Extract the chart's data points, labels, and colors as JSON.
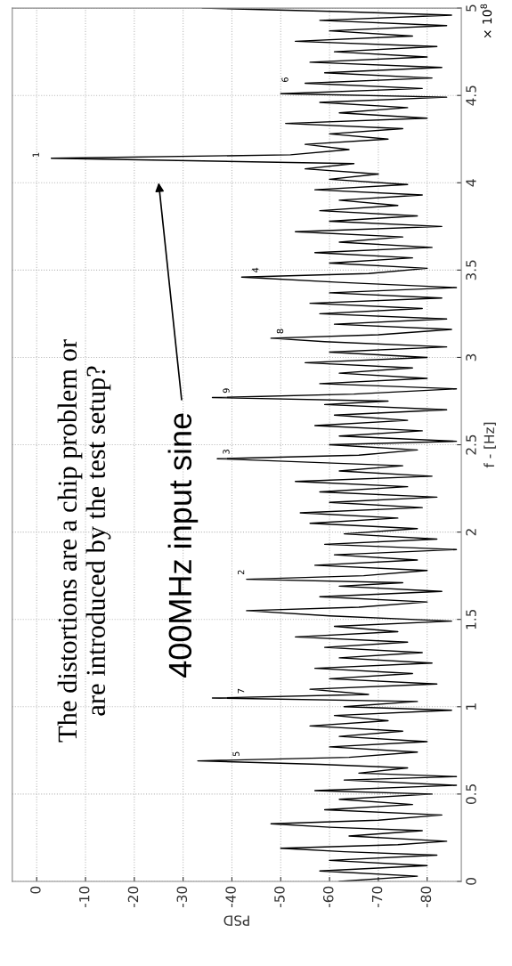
{
  "chart_data": {
    "type": "line",
    "xlabel": "PSD",
    "ylabel": "f - [Hz]",
    "series": [
      {
        "color": "#000000",
        "x": [
          -62,
          -78,
          -58,
          -80,
          -60,
          -82,
          -63,
          -50,
          -74,
          -84,
          -64,
          -79,
          -60,
          -48,
          -70,
          -83,
          -59,
          -77,
          -62,
          -81,
          -57,
          -86,
          -63,
          -86,
          -66,
          -76,
          -58,
          -33,
          -64,
          -78,
          -60,
          -80,
          -62,
          -75,
          -56,
          -72,
          -61,
          -85,
          -63,
          -78,
          -36,
          -68,
          -56,
          -82,
          -60,
          -77,
          -57,
          -81,
          -62,
          -79,
          -59,
          -76,
          -53,
          -74,
          -61,
          -85,
          -60,
          -43,
          -66,
          -80,
          -58,
          -83,
          -62,
          -75,
          -43,
          -67,
          -80,
          -57,
          -78,
          -61,
          -86,
          -59,
          -82,
          -63,
          -78,
          -56,
          -74,
          -54,
          -79,
          -60,
          -82,
          -58,
          -76,
          -53,
          -81,
          -62,
          -75,
          -37,
          -66,
          -78,
          -60,
          -86,
          -62,
          -79,
          -57,
          -76,
          -61,
          -84,
          -59,
          -72,
          -36,
          -65,
          -86,
          -58,
          -80,
          -62,
          -77,
          -55,
          -80,
          -60,
          -84,
          -59,
          -48,
          -70,
          -85,
          -61,
          -84,
          -58,
          -79,
          -56,
          -83,
          -60,
          -86,
          -62,
          -42,
          -68,
          -80,
          -60,
          -77,
          -57,
          -81,
          -62,
          -75,
          -53,
          -83,
          -60,
          -78,
          -58,
          -74,
          -62,
          -79,
          -57,
          -76,
          -60,
          -70,
          -55,
          -65,
          -3,
          -52,
          -64,
          -55,
          -72,
          -60,
          -75,
          -51,
          -80,
          -62,
          -76,
          -58,
          -84,
          -50,
          -79,
          -55,
          -81,
          -59,
          -83,
          -56,
          -80,
          -61,
          -82,
          -53,
          -77,
          -60,
          -84,
          -58,
          -85,
          -62,
          -34
        ],
        "values": [
          0.0,
          0.03,
          0.06,
          0.09,
          0.12,
          0.15,
          0.17,
          0.19,
          0.21,
          0.23,
          0.26,
          0.29,
          0.31,
          0.33,
          0.35,
          0.38,
          0.41,
          0.44,
          0.47,
          0.5,
          0.52,
          0.55,
          0.58,
          0.6,
          0.62,
          0.65,
          0.67,
          0.69,
          0.71,
          0.74,
          0.77,
          0.8,
          0.83,
          0.86,
          0.89,
          0.92,
          0.95,
          0.98,
          1.0,
          1.03,
          1.05,
          1.07,
          1.1,
          1.13,
          1.16,
          1.19,
          1.22,
          1.25,
          1.28,
          1.31,
          1.34,
          1.37,
          1.4,
          1.43,
          1.46,
          1.49,
          1.52,
          1.55,
          1.57,
          1.6,
          1.63,
          1.66,
          1.69,
          1.71,
          1.73,
          1.75,
          1.78,
          1.81,
          1.84,
          1.87,
          1.9,
          1.93,
          1.96,
          1.99,
          2.02,
          2.05,
          2.08,
          2.11,
          2.14,
          2.17,
          2.2,
          2.23,
          2.26,
          2.29,
          2.32,
          2.35,
          2.38,
          2.42,
          2.44,
          2.47,
          2.5,
          2.52,
          2.55,
          2.58,
          2.61,
          2.64,
          2.67,
          2.7,
          2.73,
          2.75,
          2.77,
          2.79,
          2.82,
          2.85,
          2.88,
          2.91,
          2.94,
          2.97,
          3.0,
          3.03,
          3.06,
          3.09,
          3.11,
          3.13,
          3.16,
          3.19,
          3.22,
          3.25,
          3.28,
          3.31,
          3.34,
          3.37,
          3.4,
          3.43,
          3.46,
          3.48,
          3.51,
          3.54,
          3.57,
          3.6,
          3.63,
          3.66,
          3.69,
          3.72,
          3.75,
          3.78,
          3.81,
          3.84,
          3.87,
          3.9,
          3.93,
          3.96,
          3.99,
          4.02,
          4.05,
          4.08,
          4.11,
          4.14,
          4.16,
          4.19,
          4.22,
          4.25,
          4.28,
          4.31,
          4.34,
          4.37,
          4.4,
          4.43,
          4.46,
          4.49,
          4.51,
          4.54,
          4.57,
          4.6,
          4.63,
          4.66,
          4.69,
          4.72,
          4.75,
          4.78,
          4.81,
          4.84,
          4.87,
          4.9,
          4.93,
          4.96,
          4.98,
          5.0
        ]
      }
    ],
    "xlim": [
      5,
      -87
    ],
    "xticks": [
      0,
      -10,
      -20,
      -30,
      -40,
      -50,
      -60,
      -70,
      -80
    ],
    "ylim": [
      0,
      5
    ],
    "yticks": [
      0,
      0.5,
      1,
      1.5,
      2,
      2.5,
      3,
      3.5,
      4,
      4.5,
      5
    ],
    "grid": true,
    "annotations": [
      "The distortions are a chip problem or\nare introduced by the test setup?",
      "× 10$^{8}$",
      "400MHz input sine",
      "1",
      "2",
      "3",
      "4",
      "5",
      "6",
      "7",
      "8",
      "9"
    ]
  }
}
